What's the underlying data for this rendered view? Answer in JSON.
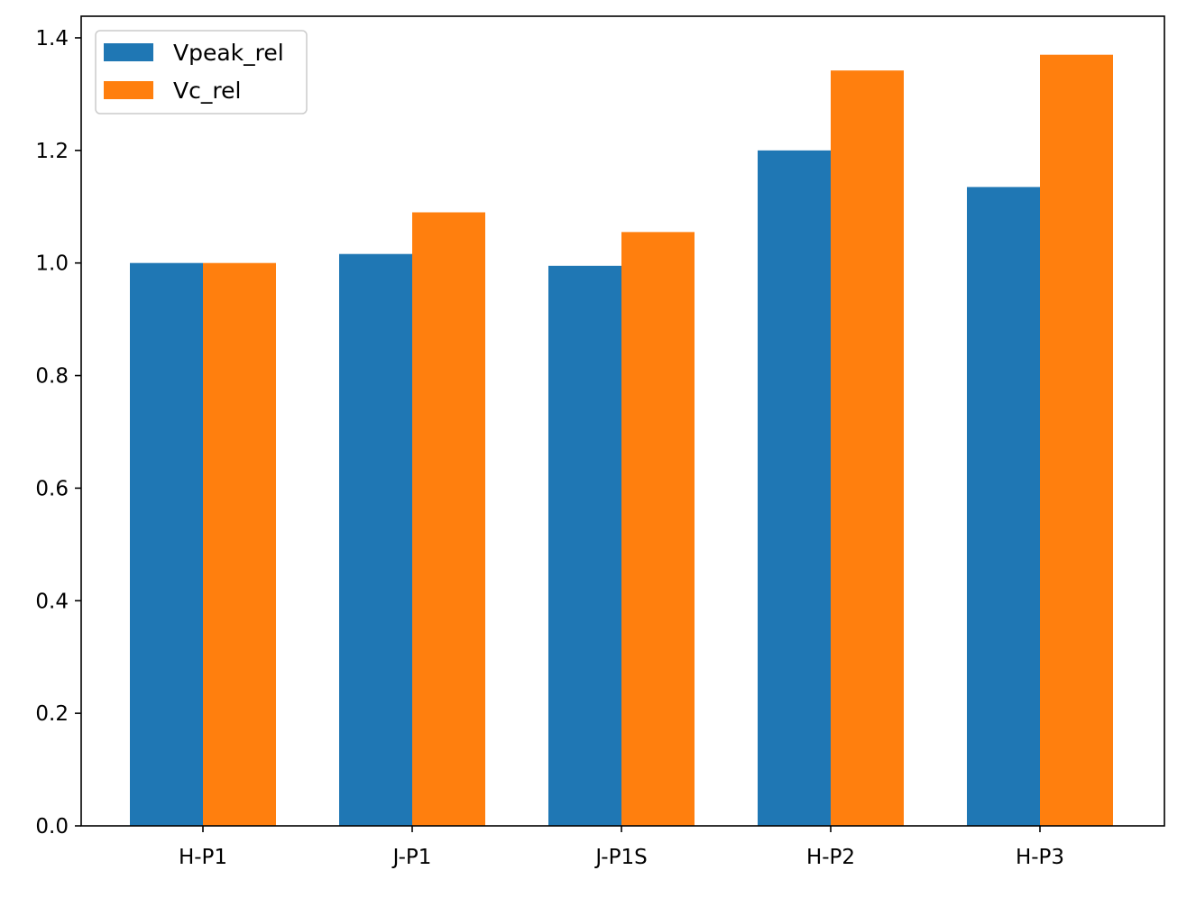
{
  "chart_data": {
    "type": "bar",
    "categories": [
      "H-P1",
      "J-P1",
      "J-P1S",
      "H-P2",
      "H-P3"
    ],
    "series": [
      {
        "name": "Vpeak_rel",
        "color": "#1f77b4",
        "values": [
          1.0,
          1.016,
          0.995,
          1.2,
          1.135
        ]
      },
      {
        "name": "Vc_rel",
        "color": "#ff7f0e",
        "values": [
          1.0,
          1.09,
          1.055,
          1.342,
          1.37
        ]
      }
    ],
    "yticks": [
      "0.0",
      "0.2",
      "0.4",
      "0.6",
      "0.8",
      "1.0",
      "1.2",
      "1.4"
    ],
    "ylim": [
      0,
      1.4384
    ],
    "grid": false,
    "legend_position": "top-left"
  }
}
